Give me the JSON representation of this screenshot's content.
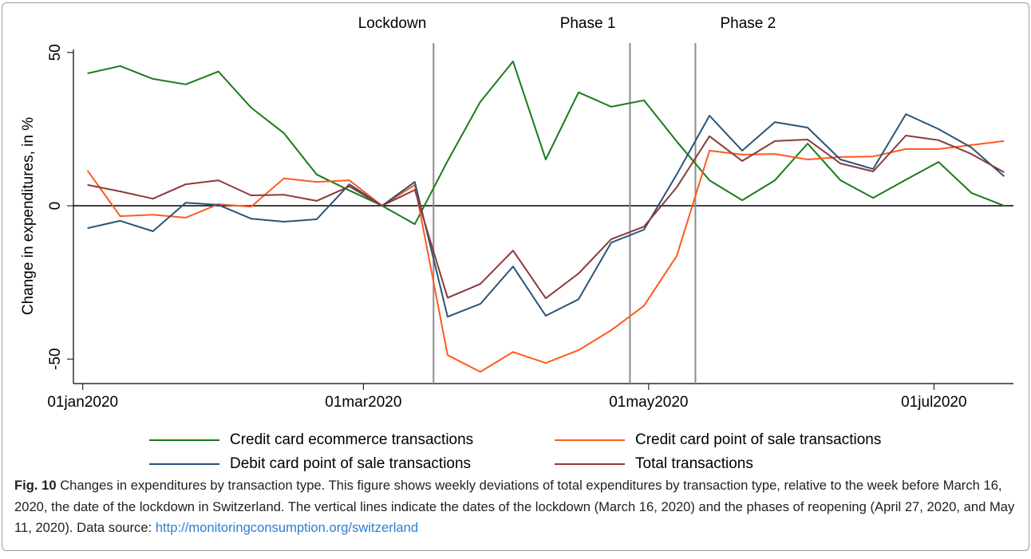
{
  "chart_data": {
    "type": "line",
    "ylabel": "Change in expenditures, in %",
    "x": [
      "2020-01-02",
      "2020-01-09",
      "2020-01-16",
      "2020-01-23",
      "2020-01-30",
      "2020-02-06",
      "2020-02-13",
      "2020-02-20",
      "2020-02-27",
      "2020-03-05",
      "2020-03-12",
      "2020-03-19",
      "2020-03-26",
      "2020-04-02",
      "2020-04-09",
      "2020-04-16",
      "2020-04-23",
      "2020-04-30",
      "2020-05-07",
      "2020-05-14",
      "2020-05-21",
      "2020-05-28",
      "2020-06-04",
      "2020-06-11",
      "2020-06-18",
      "2020-06-25",
      "2020-07-02",
      "2020-07-09",
      "2020-07-16"
    ],
    "series": [
      {
        "name": "Credit card ecommerce transactions",
        "color": "#1b7a1b",
        "values": [
          43.2,
          45.6,
          41.4,
          39.6,
          43.8,
          32,
          23.7,
          10.2,
          5,
          0,
          -6,
          14.6,
          33.9,
          47.1,
          15.1,
          37,
          32.3,
          34.4,
          21,
          8.3,
          1.8,
          8.3,
          20.3,
          8.3,
          2.6,
          8.5,
          14.3,
          4.2,
          0
        ]
      },
      {
        "name": "Credit card point of sale transactions",
        "color": "#ff5a1e",
        "values": [
          11.5,
          -3.4,
          -2.9,
          -3.9,
          0.5,
          -0.3,
          8.9,
          7.8,
          8.3,
          0,
          6.8,
          -48.7,
          -54.2,
          -47.7,
          -51.3,
          -47.1,
          -40.6,
          -32.6,
          -16.4,
          18,
          16.7,
          16.9,
          15.1,
          15.9,
          16.1,
          18.5,
          18.5,
          19.8,
          21.1
        ]
      },
      {
        "name": "Debit card point of sale transactions",
        "color": "#2a5478",
        "values": [
          -7.3,
          -4.9,
          -8.3,
          1,
          0.3,
          -4.2,
          -5.2,
          -4.4,
          7,
          0,
          7.8,
          -36.2,
          -32,
          -19.8,
          -35.9,
          -30.5,
          -12,
          -7.8,
          10.2,
          29.4,
          18,
          27.3,
          25.5,
          15.1,
          12,
          29.9,
          25,
          19,
          9.6
        ]
      },
      {
        "name": "Total transactions",
        "color": "#8b3a3a",
        "values": [
          6.8,
          4.7,
          2.3,
          7,
          8.3,
          3.4,
          3.6,
          1.6,
          6.3,
          0,
          5.2,
          -30,
          -25.5,
          -14.6,
          -30.2,
          -22.1,
          -10.9,
          -6.8,
          6,
          22.7,
          14.6,
          21.1,
          21.6,
          13.8,
          11.2,
          22.9,
          21.4,
          16.9,
          10.9
        ]
      }
    ],
    "xlim": [
      "2019-12-30",
      "2020-07-18"
    ],
    "xticks": [
      {
        "value": "2020-01-01",
        "label": "01jan2020"
      },
      {
        "value": "2020-03-01",
        "label": "01mar2020"
      },
      {
        "value": "2020-05-01",
        "label": "01may2020"
      },
      {
        "value": "2020-07-01",
        "label": "01jul2020"
      }
    ],
    "ylim": [
      -58,
      51
    ],
    "yticks": [
      -50,
      0,
      50
    ],
    "hline": 0,
    "vlines": [
      {
        "x": "2020-03-16",
        "label": "Lockdown"
      },
      {
        "x": "2020-04-27",
        "label": "Phase 1"
      },
      {
        "x": "2020-05-11",
        "label": "Phase 2"
      }
    ],
    "grid": false,
    "legend": "bottom"
  },
  "caption": {
    "label": "Fig. 10",
    "text": "Changes in expenditures by transaction type. This figure shows weekly deviations of total expenditures by transaction type, relative to the week before March 16, 2020, the date of the lockdown in Switzerland. The vertical lines indicate the dates of the lockdown (March 16, 2020) and the phases of reopening (April 27, 2020, and May 11, 2020). Data source:",
    "link": "http://monitoringconsumption.org/switzerland"
  }
}
